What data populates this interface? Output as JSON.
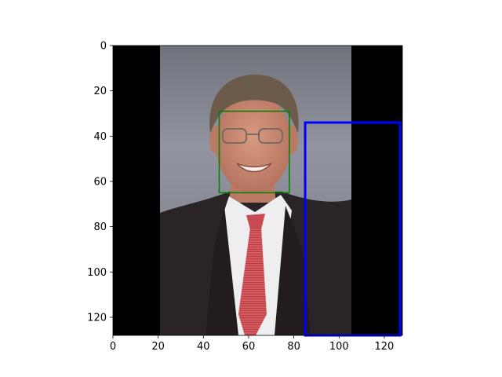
{
  "image": {
    "description": "",
    "pixel_extent": [
      128,
      128
    ],
    "colors": {
      "background_left_right": "#000000",
      "backdrop_top": "#8a8c98",
      "backdrop_bottom": "#5b5c66",
      "suit": "#2a2427",
      "shirt": "#f0f0f0",
      "tie": "#d9585e",
      "skin": "#c98a74",
      "hair": "#6a5a4c"
    }
  },
  "axes": {
    "x_ticks": [
      "0",
      "20",
      "40",
      "60",
      "80",
      "100",
      "120"
    ],
    "y_ticks": [
      "0",
      "20",
      "40",
      "60",
      "80",
      "100",
      "120"
    ],
    "x_range": [
      0,
      128
    ],
    "y_range": [
      0,
      128
    ]
  },
  "boxes": [
    {
      "name": "face-box",
      "color": "#008000",
      "x0": 47,
      "y0": 29,
      "x1": 78,
      "y1": 65
    },
    {
      "name": "blue-box",
      "color": "#0000ff",
      "x0": 85,
      "y0": 34,
      "x1": 127,
      "y1": 128
    }
  ]
}
